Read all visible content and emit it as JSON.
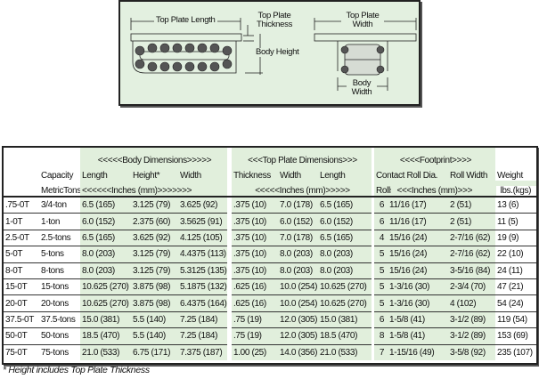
{
  "diagram": {
    "top_plate_length": "Top Plate Length",
    "top_plate_thickness": "Top Plate Thickness",
    "body_height": "Body Height",
    "top_plate_width": "Top Plate Width",
    "body_width": "Body Width"
  },
  "table": {
    "group_headers": {
      "body": "<<<<<Body Dimensions>>>>>",
      "top_plate": "<<<Top Plate Dimensions>>>",
      "footprint": "<<<<Footprint>>>>"
    },
    "column_headers": {
      "capacity": "Capacity",
      "length": "Length",
      "height": "Height*",
      "width": "Width",
      "thickness": "Thickness",
      "tp_width": "Width",
      "tp_length": "Length",
      "contact": "Contact",
      "roll_dia": "Roll Dia.",
      "roll_width": "Roll Width",
      "weight": "Weight"
    },
    "unit_headers": {
      "capacity": "MetricTons",
      "body": "<<<<<<Inches (mm)>>>>>>>",
      "top_plate": "<<<<<Inches (mm)>>>>>",
      "rolls": "Rolls",
      "footprint": "<<<Inches (mm)>>>",
      "weight": "lbs.(kgs)"
    },
    "rows": [
      {
        "model": ".75-0T",
        "capacity": "3/4-ton",
        "length": "6.5 (165)",
        "height": "3.125 (79)",
        "width": "3.625 (92)",
        "thickness": ".375 (10)",
        "tp_width": "7.0 (178)",
        "tp_length": "6.5 (165)",
        "rolls": "6",
        "roll_dia": "11/16 (17)",
        "roll_width": "2 (51)",
        "weight": "13 (6)"
      },
      {
        "model": "1-0T",
        "capacity": "1-ton",
        "length": "6.0 (152)",
        "height": "2.375 (60)",
        "width": "3.5625 (91)",
        "thickness": ".375 (10)",
        "tp_width": "6.0 (152)",
        "tp_length": "6.0 (152)",
        "rolls": "6",
        "roll_dia": "11/16 (17)",
        "roll_width": "2 (51)",
        "weight": "11 (5)"
      },
      {
        "model": "2.5-0T",
        "capacity": "2.5-tons",
        "length": "6.5 (165)",
        "height": "3.625 (92)",
        "width": "4.125 (105)",
        "thickness": ".375 (10)",
        "tp_width": "7.0 (178)",
        "tp_length": "6.5 (165)",
        "rolls": "4",
        "roll_dia": "15/16 (24)",
        "roll_width": "2-7/16 (62)",
        "weight": "19 (9)"
      },
      {
        "model": "5-0T",
        "capacity": "5-tons",
        "length": "8.0 (203)",
        "height": "3.125 (79)",
        "width": "4.4375 (113)",
        "thickness": ".375 (10)",
        "tp_width": "8.0 (203)",
        "tp_length": "8.0 (203)",
        "rolls": "5",
        "roll_dia": "15/16 (24)",
        "roll_width": "2-7/16 (62)",
        "weight": "22 (10)"
      },
      {
        "model": "8-0T",
        "capacity": "8-tons",
        "length": "8.0 (203)",
        "height": "3.125 (79)",
        "width": "5.3125 (135)",
        "thickness": ".375 (10)",
        "tp_width": "8.0 (203)",
        "tp_length": "8.0 (203)",
        "rolls": "5",
        "roll_dia": "15/16 (24)",
        "roll_width": "3-5/16 (84)",
        "weight": "24 (11)"
      },
      {
        "model": "15-0T",
        "capacity": "15-tons",
        "length": "10.625 (270)",
        "height": "3.875 (98)",
        "width": "5.1875 (132)",
        "thickness": ".625 (16)",
        "tp_width": "10.0 (254)",
        "tp_length": "10.625 (270)",
        "rolls": "5",
        "roll_dia": "1-3/16 (30)",
        "roll_width": "2-3/4 (70)",
        "weight": "47 (21)"
      },
      {
        "model": "20-0T",
        "capacity": "20-tons",
        "length": "10.625 (270)",
        "height": "3.875 (98)",
        "width": "6.4375 (164)",
        "thickness": ".625 (16)",
        "tp_width": "10.0 (254)",
        "tp_length": "10.625 (270)",
        "rolls": "5",
        "roll_dia": "1-3/16 (30)",
        "roll_width": "4 (102)",
        "weight": "54 (24)"
      },
      {
        "model": "37.5-0T",
        "capacity": "37.5-tons",
        "length": "15.0 (381)",
        "height": "5.5 (140)",
        "width": "7.25 (184)",
        "thickness": ".75 (19)",
        "tp_width": "12.0 (305)",
        "tp_length": "15.0 (381)",
        "rolls": "6",
        "roll_dia": "1-5/8 (41)",
        "roll_width": "3-1/2 (89)",
        "weight": "119 (54)"
      },
      {
        "model": "50-0T",
        "capacity": "50-tons",
        "length": "18.5 (470)",
        "height": "5.5 (140)",
        "width": "7.25 (184)",
        "thickness": ".75 (19)",
        "tp_width": "12.0 (305)",
        "tp_length": "18.5 (470)",
        "rolls": "8",
        "roll_dia": "1-5/8 (41)",
        "roll_width": "3-1/2 (89)",
        "weight": "153 (69)"
      },
      {
        "model": "75-0T",
        "capacity": "75-tons",
        "length": "21.0 (533)",
        "height": "6.75 (171)",
        "width": "7.375 (187)",
        "thickness": "1.00 (25)",
        "tp_width": "14.0 (356)",
        "tp_length": "21.0 (533)",
        "rolls": "7",
        "roll_dia": "1-15/16 (49)",
        "roll_width": "3-5/8 (92)",
        "weight": "235 (107)"
      }
    ]
  },
  "footnote": "* Height includes Top Plate Thickness",
  "colors": {
    "band_green": "#e1efdc",
    "diagram_bg": "#e3f0e0"
  }
}
